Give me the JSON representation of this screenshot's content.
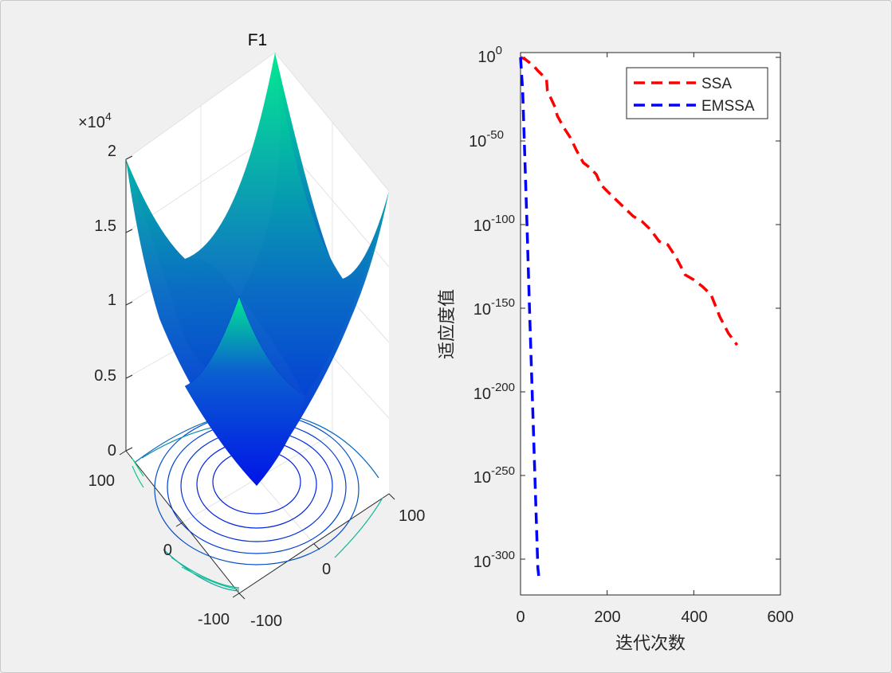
{
  "chart_data": [
    {
      "type": "surface",
      "title": "F1",
      "z_exponent_label": "×10",
      "z_exponent_power": "4",
      "zlim": [
        0,
        2
      ],
      "z_ticks": [
        "0",
        "0.5",
        "1",
        "1.5",
        "2"
      ],
      "x_ticks": [
        "-100",
        "0",
        "100"
      ],
      "y_ticks": [
        "-100",
        "0",
        "100"
      ],
      "xlim": [
        -100,
        100
      ],
      "ylim": [
        -100,
        100
      ],
      "function": "sum of squares x^2 + y^2",
      "grid": true,
      "contour_base": true,
      "colormap": [
        "#0022e0",
        "#00e890"
      ]
    },
    {
      "type": "line",
      "xlabel": "迭代次数",
      "ylabel": "适应度值",
      "y_scale": "log",
      "xlim": [
        0,
        600
      ],
      "x_ticks": [
        "0",
        "200",
        "400",
        "600"
      ],
      "ylim_exponent": [
        -320,
        0
      ],
      "y_ticks": [
        {
          "base": "10",
          "exp": "0"
        },
        {
          "base": "10",
          "exp": "-50"
        },
        {
          "base": "10",
          "exp": "-100"
        },
        {
          "base": "10",
          "exp": "-150"
        },
        {
          "base": "10",
          "exp": "-200"
        },
        {
          "base": "10",
          "exp": "-250"
        },
        {
          "base": "10",
          "exp": "-300"
        }
      ],
      "legend_position": "top-right",
      "series": [
        {
          "name": "SSA",
          "color": "#ff0000",
          "style": "dashed",
          "x": [
            0,
            10,
            20,
            30,
            40,
            60,
            62,
            80,
            85,
            100,
            115,
            130,
            145,
            160,
            175,
            185,
            200,
            220,
            240,
            260,
            280,
            300,
            320,
            340,
            360,
            380,
            400,
            420,
            440,
            460,
            480,
            500
          ],
          "log10_y": [
            0,
            -1,
            -3,
            -5,
            -8,
            -13,
            -20,
            -30,
            -35,
            -42,
            -48,
            -56,
            -63,
            -66,
            -70,
            -76,
            -80,
            -85,
            -90,
            -95,
            -98,
            -103,
            -110,
            -112,
            -120,
            -130,
            -133,
            -137,
            -142,
            -155,
            -165,
            -172
          ]
        },
        {
          "name": "EMSSA",
          "color": "#0000ff",
          "style": "dashed",
          "x": [
            0,
            5,
            10,
            15,
            20,
            25,
            30,
            35,
            40,
            42
          ],
          "log10_y": [
            0,
            -20,
            -60,
            -100,
            -145,
            -185,
            -225,
            -265,
            -305,
            -310
          ]
        }
      ]
    }
  ]
}
